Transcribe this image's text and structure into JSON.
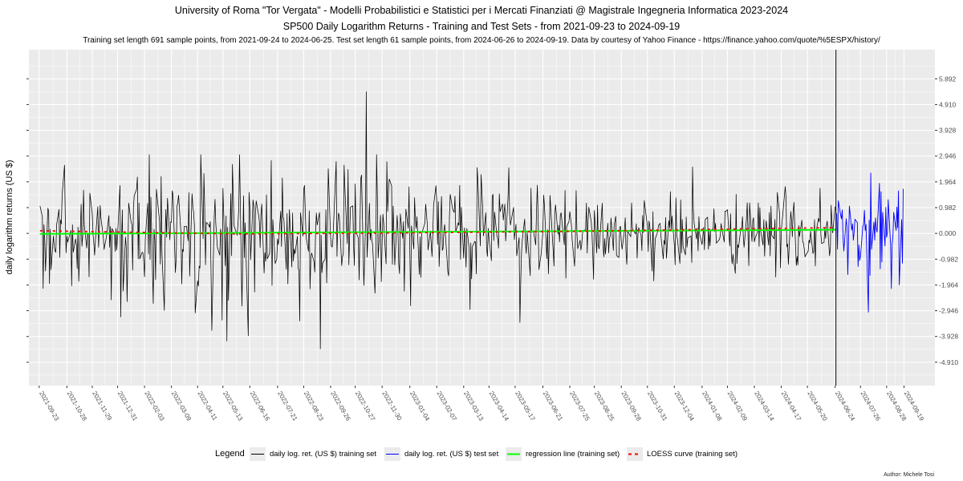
{
  "title": "University of Roma \"Tor Vergata\" - Modelli Probabilistici e Statistici per i Mercati Finanziati @ Magistrale Ingegneria Informatica 2023-2024",
  "subtitle": "SP500 Daily Logarithm Returns - Training and Test Sets - from 2021-09-23 to 2024-09-19",
  "caption": "Training set length 691 sample points, from 2021-09-24 to 2024-06-25. Test set length 61 sample points, from 2024-06-26 to 2024-09-19. Data by courtesy of Yahoo Finance - https://finance.yahoo.com/quote/%5ESPX/history/",
  "author": "Author: Michele Tosi",
  "legend": {
    "title": "Legend",
    "items": [
      {
        "label": "daily log. ret. (US $) training set",
        "color": "#000000",
        "style": "solid"
      },
      {
        "label": "daily log. ret. (US $) test set",
        "color": "#0000ff",
        "style": "solid"
      },
      {
        "label": "regression line (training set)",
        "color": "#00ff00",
        "style": "solid-thick"
      },
      {
        "label": "LOESS curve (training set)",
        "color": "#ff0000",
        "style": "dashed"
      }
    ]
  },
  "colors": {
    "panel": "#ebebeb",
    "grid": "#ffffff",
    "training": "#000000",
    "test": "#0000ff",
    "regression": "#00ff00",
    "loess": "#ff0000",
    "split_line": "#000000"
  },
  "chart_data": {
    "type": "line",
    "ylabel": "daily logarithm returns (US $)",
    "xlabel": "",
    "x_range": [
      "2021-09-23",
      "2024-09-19"
    ],
    "ylim": [
      -5.8,
      7.0
    ],
    "y_ticks": [
      -4.91,
      -3.928,
      -2.946,
      -1.964,
      -0.982,
      0.0,
      0.982,
      1.964,
      2.946,
      3.928,
      4.91,
      5.892
    ],
    "y_tick_labels": [
      "-4.910",
      "-3.928",
      "-2.946",
      "-1.964",
      "-0.982",
      "0.000",
      "0.982",
      "1.964",
      "2.946",
      "3.928",
      "4.910",
      "5.892"
    ],
    "x_ticks": [
      "2021-09-23",
      "2021-10-28",
      "2021-11-29",
      "2021-12-31",
      "2022-02-03",
      "2022-03-09",
      "2022-04-11",
      "2022-05-13",
      "2022-06-16",
      "2022-07-21",
      "2022-08-23",
      "2022-09-26",
      "2022-10-27",
      "2022-11-30",
      "2023-01-04",
      "2023-02-07",
      "2023-03-13",
      "2023-04-14",
      "2023-05-17",
      "2023-06-21",
      "2023-07-25",
      "2023-08-25",
      "2023-09-28",
      "2023-10-31",
      "2023-12-04",
      "2024-01-08",
      "2024-02-09",
      "2024-03-14",
      "2024-04-17",
      "2024-05-20",
      "2024-06-24",
      "2024-07-26",
      "2024-08-28",
      "2024-09-19"
    ],
    "x_tick_labels": [
      "2021-09-23",
      "2021-10-28",
      "2021-11-29",
      "2021-12-31",
      "2022-02-03",
      "2022-03-09",
      "2022-04-11",
      "2022-05-13",
      "2022-06-16",
      "2022-07-21",
      "2022-08-23",
      "2022-09-26",
      "2022-10-27",
      "2022-11-30",
      "2023-01-04",
      "2023-02-07",
      "2023-03-13",
      "2023-04-14",
      "2023-05-17",
      "2023-06-21",
      "2023-07-25",
      "2023-08-25",
      "2023-09-28",
      "2023-10-31",
      "2023-12-04",
      "2024-01-08",
      "2024-02-09",
      "2024-03-14",
      "2024-04-17",
      "2024-05-20",
      "2024-06-24",
      "2024-07-26",
      "2024-08-28",
      "2024-09-19"
    ],
    "split_date": "2024-06-25",
    "series": [
      {
        "name": "daily log. ret. (US $) training set",
        "start": "2021-09-24",
        "end": "2024-06-25",
        "count": 691,
        "notable_points": [
          {
            "x": "2022-11-10",
            "y": 5.4
          },
          {
            "x": "2022-10-13",
            "y": 2.6
          },
          {
            "x": "2022-09-13",
            "y": -4.4
          },
          {
            "x": "2022-05-18",
            "y": -4.1
          },
          {
            "x": "2022-06-13",
            "y": -3.9
          },
          {
            "x": "2022-04-29",
            "y": -3.7
          },
          {
            "x": "2021-09-28",
            "y": -2.1
          }
        ]
      },
      {
        "name": "daily log. ret. (US $) test set",
        "start": "2024-06-26",
        "end": "2024-09-19",
        "count": 61,
        "notable_points": [
          {
            "x": "2024-08-05",
            "y": -3.0
          },
          {
            "x": "2024-08-08",
            "y": 2.3
          },
          {
            "x": "2024-09-03",
            "y": -2.1
          },
          {
            "x": "2024-09-18",
            "y": 1.7
          }
        ]
      },
      {
        "name": "regression line (training set)",
        "x": [
          "2021-09-24",
          "2024-06-25"
        ],
        "y": [
          -0.02,
          0.14
        ]
      },
      {
        "name": "LOESS curve (training set)",
        "x": [
          "2021-09-24",
          "2022-06-01",
          "2023-01-01",
          "2023-08-01",
          "2024-06-25"
        ],
        "y": [
          0.1,
          -0.02,
          0.02,
          0.08,
          0.22
        ]
      }
    ]
  }
}
